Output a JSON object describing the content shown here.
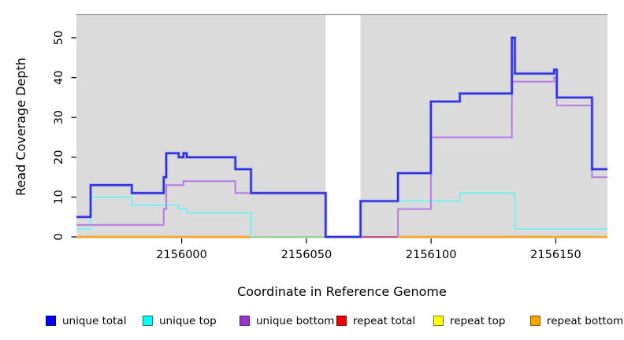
{
  "chart_data": {
    "type": "line",
    "step": true,
    "title": "",
    "xlabel": "Coordinate in Reference Genome",
    "ylabel": "Read Coverage Depth",
    "xlim": [
      2155957.8,
      2156170.7
    ],
    "ylim": [
      0,
      56
    ],
    "grid": false,
    "panel_background": "#DBDBDB",
    "panel_top_border": "#9E9E9E",
    "x_ticks": [
      {
        "coord": 2156000,
        "label": "2156000"
      },
      {
        "coord": 2156050,
        "label": "2156050"
      },
      {
        "coord": 2156100,
        "label": "2156100"
      },
      {
        "coord": 2156150,
        "label": "2156150"
      }
    ],
    "y_ticks": [
      {
        "value": 0,
        "label": "0"
      },
      {
        "value": 10,
        "label": "10"
      },
      {
        "value": 20,
        "label": "20"
      },
      {
        "value": 30,
        "label": "30"
      },
      {
        "value": 40,
        "label": "40"
      },
      {
        "value": 50,
        "label": "50"
      }
    ],
    "gap_region": {
      "x0": 2156057.7,
      "x1": 2156071.7
    },
    "zero_line_segments": [
      {
        "x0": 2155957.8,
        "x1": 2156027.8,
        "color": "#FFA41E",
        "width": 2.4
      },
      {
        "x0": 2156027.8,
        "x1": 2156057.7,
        "color": "#90CE90",
        "width": 1.8
      },
      {
        "x0": 2156071.7,
        "x1": 2156086.7,
        "color": "#C2527E",
        "width": 2.0
      },
      {
        "x0": 2156086.7,
        "x1": 2156170.7,
        "color": "#FFA41E",
        "width": 2.4
      }
    ],
    "series": [
      {
        "name": "unique top",
        "color": "#7FE8E8",
        "halo": "#BFF4F4",
        "width": 1.8,
        "segments": [
          {
            "points": [
              [
                2155957.8,
                2
              ],
              [
                2155963.5,
                10
              ],
              [
                2155980,
                8
              ],
              [
                2155998.8,
                7
              ],
              [
                2156002,
                6
              ],
              [
                2156027.8,
                0
              ]
            ]
          },
          {
            "points": [
              [
                2156071.7,
                0
              ],
              [
                2156071.7,
                9
              ],
              [
                2156111.5,
                11
              ],
              [
                2156133.6,
                2
              ]
            ],
            "xend": 2156170.7
          }
        ]
      },
      {
        "name": "unique bottom",
        "color": "#B27FDC",
        "halo": "#D6BCEE",
        "width": 1.8,
        "segments": [
          {
            "points": [
              [
                2155957.8,
                3
              ],
              [
                2155992.8,
                7
              ],
              [
                2155993.8,
                13
              ],
              [
                2156000.7,
                14
              ],
              [
                2156021.5,
                11
              ],
              [
                2156057.7,
                0
              ]
            ]
          },
          {
            "points": [
              [
                2156086.7,
                0
              ],
              [
                2156086.7,
                7
              ],
              [
                2156099.9,
                25
              ],
              [
                2156132.4,
                39
              ],
              [
                2156149.3,
                40
              ],
              [
                2156150.4,
                33
              ],
              [
                2156164.5,
                15
              ]
            ],
            "xend": 2156170.7
          }
        ]
      },
      {
        "name": "unique total",
        "color": "#2E2EDC",
        "halo": "#8A8AF0",
        "width": 2.3,
        "segments": [
          {
            "points": [
              [
                2155957.8,
                5
              ],
              [
                2155963.5,
                13
              ],
              [
                2155980,
                11
              ],
              [
                2155992.8,
                15
              ],
              [
                2155993.8,
                21
              ],
              [
                2155998.8,
                20
              ],
              [
                2156000.7,
                21
              ],
              [
                2156002,
                20
              ],
              [
                2156021.5,
                17
              ],
              [
                2156027.8,
                11
              ],
              [
                2156057.7,
                0
              ],
              [
                2156071.7,
                9
              ],
              [
                2156086.7,
                16
              ],
              [
                2156099.9,
                34
              ],
              [
                2156111.5,
                36
              ],
              [
                2156132.4,
                50
              ],
              [
                2156133.6,
                41
              ],
              [
                2156149.3,
                42
              ],
              [
                2156150.4,
                35
              ],
              [
                2156164.5,
                17
              ]
            ],
            "xend": 2156170.7
          }
        ]
      }
    ],
    "legend": [
      {
        "label": "unique total",
        "fill": "#0000EE",
        "border": "#00008B"
      },
      {
        "label": "unique top",
        "fill": "#00FFFF",
        "border": "#0F7070"
      },
      {
        "label": "unique bottom",
        "fill": "#9A32CC",
        "border": "#5B1A7A"
      },
      {
        "label": "repeat total",
        "fill": "#EE0000",
        "border": "#7A0000"
      },
      {
        "label": "repeat top",
        "fill": "#FFFF00",
        "border": "#7A7A00"
      },
      {
        "label": "repeat bottom",
        "fill": "#FFA500",
        "border": "#7A5200"
      }
    ]
  }
}
